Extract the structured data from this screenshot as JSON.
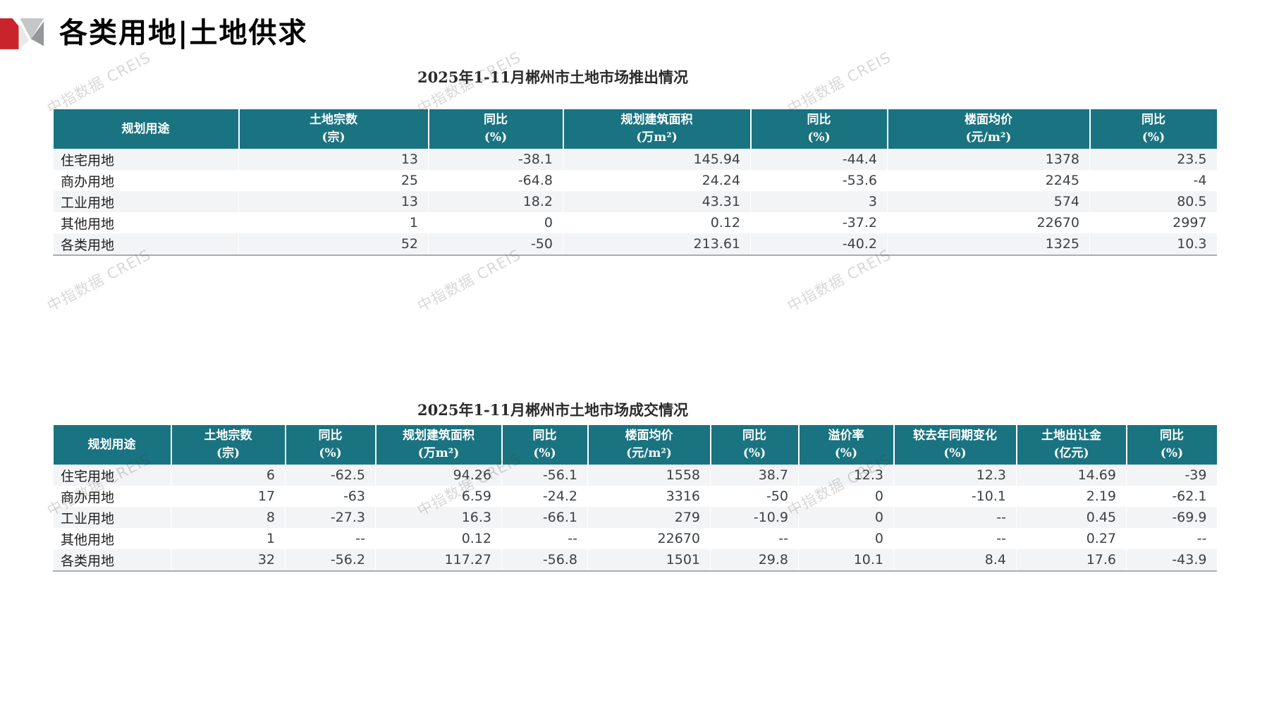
{
  "page_title": "各类用地|土地供求",
  "watermark_text": "中指数据 CREIS",
  "colors": {
    "header_teal": "#1a7380",
    "logo_red": "#c9242b",
    "row_stripe": "#f3f4f6"
  },
  "tables": [
    {
      "title": "2025年1-11月郴州市土地市场推出情况",
      "headers": [
        "规划用途",
        "土地宗数\n(宗)",
        "同比\n(%)",
        "规划建筑面积\n(万m²)",
        "同比\n(%)",
        "楼面均价\n(元/m²)",
        "同比\n(%)"
      ],
      "rows": [
        [
          "住宅用地",
          "13",
          "-38.1",
          "145.94",
          "-44.4",
          "1378",
          "23.5"
        ],
        [
          "商办用地",
          "25",
          "-64.8",
          "24.24",
          "-53.6",
          "2245",
          "-4"
        ],
        [
          "工业用地",
          "13",
          "18.2",
          "43.31",
          "3",
          "574",
          "80.5"
        ],
        [
          "其他用地",
          "1",
          "0",
          "0.12",
          "-37.2",
          "22670",
          "2997"
        ],
        [
          "各类用地",
          "52",
          "-50",
          "213.61",
          "-40.2",
          "1325",
          "10.3"
        ]
      ]
    },
    {
      "title": "2025年1-11月郴州市土地市场成交情况",
      "headers": [
        "规划用途",
        "土地宗数\n(宗)",
        "同比\n(%)",
        "规划建筑面积\n(万m²)",
        "同比\n(%)",
        "楼面均价\n(元/m²)",
        "同比\n(%)",
        "溢价率\n(%)",
        "较去年同期变化\n(%)",
        "土地出让金\n(亿元)",
        "同比\n(%)"
      ],
      "rows": [
        [
          "住宅用地",
          "6",
          "-62.5",
          "94.26",
          "-56.1",
          "1558",
          "38.7",
          "12.3",
          "12.3",
          "14.69",
          "-39"
        ],
        [
          "商办用地",
          "17",
          "-63",
          "6.59",
          "-24.2",
          "3316",
          "-50",
          "0",
          "-10.1",
          "2.19",
          "-62.1"
        ],
        [
          "工业用地",
          "8",
          "-27.3",
          "16.3",
          "-66.1",
          "279",
          "-10.9",
          "0",
          "--",
          "0.45",
          "-69.9"
        ],
        [
          "其他用地",
          "1",
          "--",
          "0.12",
          "--",
          "22670",
          "--",
          "0",
          "--",
          "0.27",
          "--"
        ],
        [
          "各类用地",
          "32",
          "-56.2",
          "117.27",
          "-56.8",
          "1501",
          "29.8",
          "10.1",
          "8.4",
          "17.6",
          "-43.9"
        ]
      ]
    }
  ]
}
